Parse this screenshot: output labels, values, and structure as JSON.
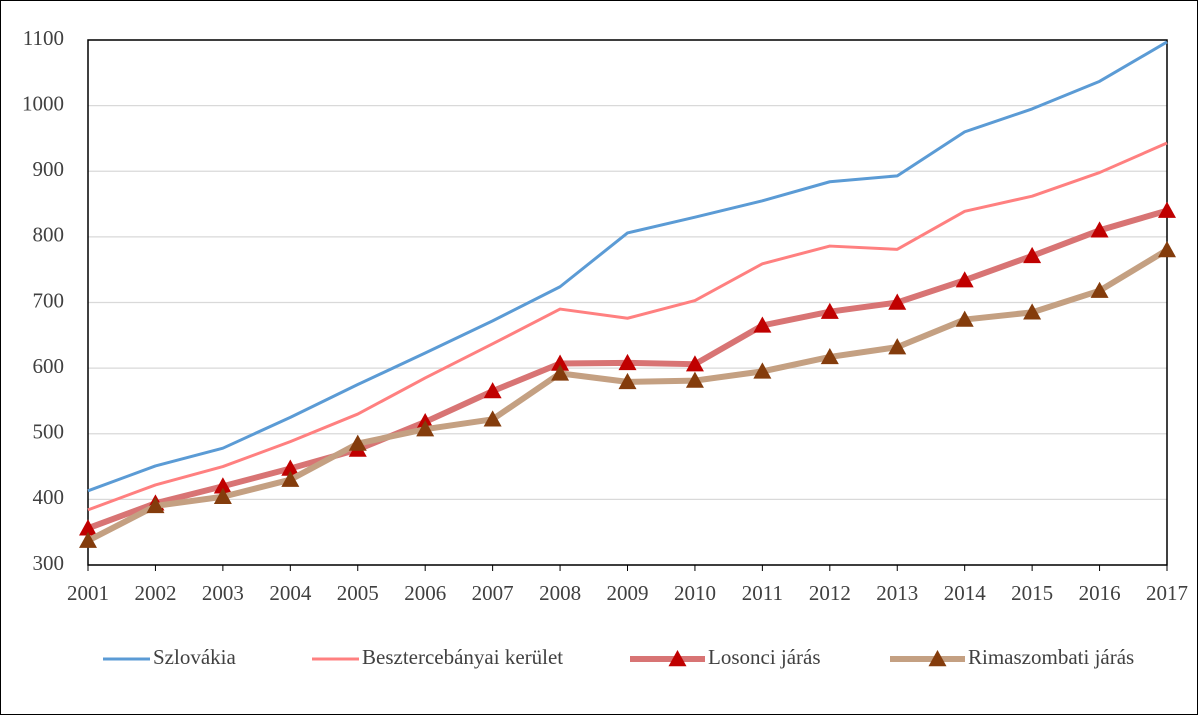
{
  "chart_data": {
    "type": "line",
    "x": [
      2001,
      2002,
      2003,
      2004,
      2005,
      2006,
      2007,
      2008,
      2009,
      2010,
      2011,
      2012,
      2013,
      2014,
      2015,
      2016,
      2017
    ],
    "xlim": [
      2001,
      2017
    ],
    "xticks": [
      2001,
      2002,
      2003,
      2004,
      2005,
      2006,
      2007,
      2008,
      2009,
      2010,
      2011,
      2012,
      2013,
      2014,
      2015,
      2016,
      2017
    ],
    "ylim": [
      300,
      1100
    ],
    "yticks": [
      300,
      400,
      500,
      600,
      700,
      800,
      900,
      1000,
      1100
    ],
    "grid": true,
    "legend": "bottom",
    "series": [
      {
        "name": "Szlovákia",
        "color": "#5b9bd5",
        "values": [
          413,
          451,
          478,
          525,
          575,
          623,
          672,
          724,
          806,
          830,
          855,
          884,
          893,
          960,
          995,
          1037,
          1097
        ]
      },
      {
        "name": "Besztercebányai kerület",
        "color": "#ff8080",
        "values": [
          384,
          422,
          450,
          488,
          530,
          585,
          637,
          690,
          676,
          703,
          759,
          786,
          781,
          839,
          862,
          898,
          943
        ]
      },
      {
        "name": "Losonci járás",
        "color": "#d87474",
        "marker_color": "#c00000",
        "values": [
          356,
          394,
          420,
          447,
          476,
          518,
          565,
          607,
          608,
          606,
          665,
          686,
          700,
          734,
          771,
          810,
          840
        ]
      },
      {
        "name": "Rimaszombati járás",
        "color": "#c4a082",
        "marker_color": "#843c0c",
        "values": [
          337,
          390,
          404,
          430,
          485,
          507,
          522,
          592,
          579,
          581,
          595,
          617,
          632,
          674,
          685,
          718,
          780
        ]
      }
    ]
  }
}
